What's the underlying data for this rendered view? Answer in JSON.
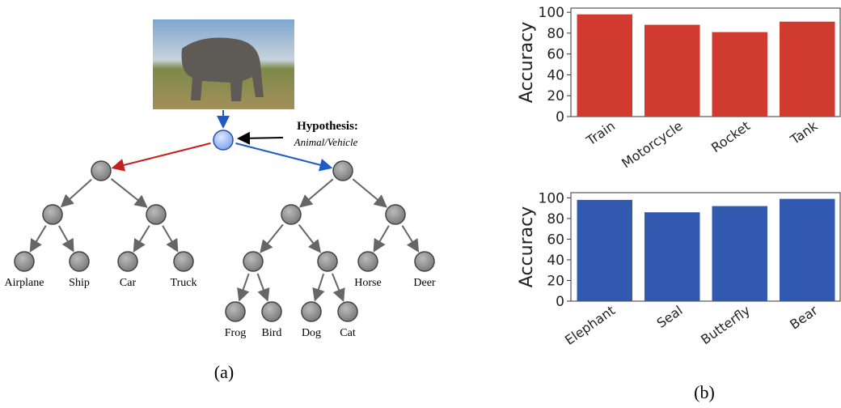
{
  "diagram": {
    "hypothesis_title": "Hypothesis:",
    "hypothesis_text": "Animal/Vehicle",
    "leaves": [
      "Airplane",
      "Ship",
      "Car",
      "Truck",
      "Frog",
      "Bird",
      "Dog",
      "Cat",
      "Horse",
      "Deer"
    ],
    "caption": "(a)"
  },
  "chart_data": [
    {
      "type": "bar",
      "ylabel": "Accuracy",
      "categories": [
        "Train",
        "Motorcycle",
        "Rocket",
        "Tank"
      ],
      "values": [
        98,
        88,
        81,
        91
      ],
      "color": "#d03a2f",
      "ylim": [
        0,
        104
      ],
      "yticks": [
        0,
        20,
        40,
        60,
        80,
        100
      ]
    },
    {
      "type": "bar",
      "ylabel": "Accuracy",
      "categories": [
        "Elephant",
        "Seal",
        "Butterfly",
        "Bear"
      ],
      "values": [
        98,
        86,
        92,
        99
      ],
      "color": "#3159b0",
      "ylim": [
        0,
        105
      ],
      "yticks": [
        0,
        20,
        40,
        60,
        80,
        100
      ]
    }
  ],
  "caption": "(b)"
}
